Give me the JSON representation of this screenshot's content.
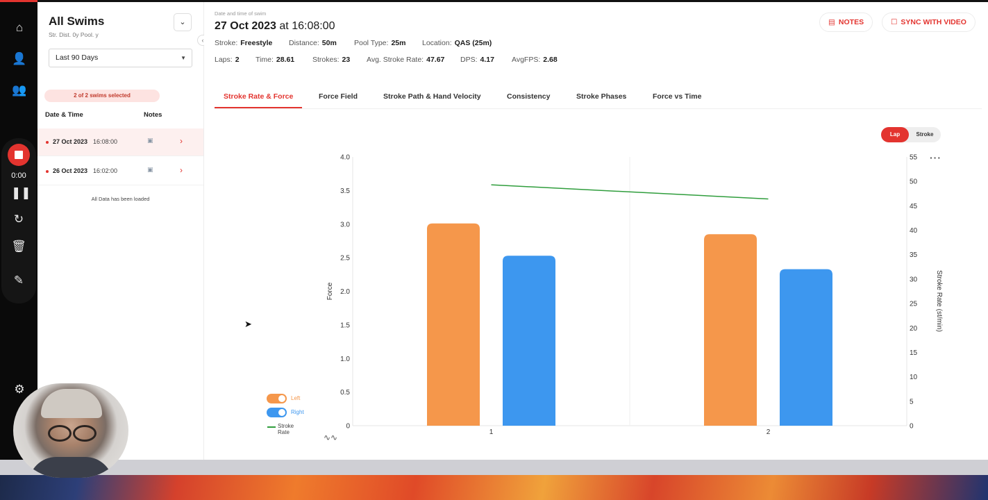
{
  "rail": {
    "icons": [
      "home-icon",
      "user-settings-icon",
      "team-icon",
      "gear-icon"
    ],
    "recorder": {
      "time": "0:00"
    }
  },
  "sidebar": {
    "title": "All Swims",
    "subtitle": "Str.  Dist. 0y  Pool. y",
    "range": "Last  90 Days",
    "selected_badge": "2 of 2 swims selected",
    "col_date": "Date & Time",
    "col_notes": "Notes",
    "swims": [
      {
        "date": "27 Oct 2023",
        "time": "16:08:00"
      },
      {
        "date": "26 Oct 2023",
        "time": "16:02:00"
      }
    ],
    "loaded": "All Data has been loaded"
  },
  "main": {
    "caption": "Date and time of swim",
    "date": "27 Oct 2023",
    "at": "at 16:08:00",
    "notes_btn": "NOTES",
    "sync_btn": "SYNC WITH VIDEO",
    "stats_row1": [
      {
        "label": "Stroke:",
        "value": "Freestyle"
      },
      {
        "label": "Distance:",
        "value": "50m"
      },
      {
        "label": "Pool Type:",
        "value": "25m"
      },
      {
        "label": "Location:",
        "value": "QAS (25m)"
      }
    ],
    "stats_row2": [
      {
        "label": "Laps:",
        "value": "2"
      },
      {
        "label": "Time:",
        "value": "28.61"
      },
      {
        "label": "Strokes:",
        "value": "23"
      },
      {
        "label": "Avg. Stroke Rate:",
        "value": "47.67"
      },
      {
        "label": "DPS:",
        "value": "4.17"
      },
      {
        "label": "AvgFPS:",
        "value": "2.68"
      }
    ],
    "tabs": [
      "Stroke Rate & Force",
      "Force Field",
      "Stroke Path & Hand Velocity",
      "Consistency",
      "Stroke Phases",
      "Force vs Time"
    ],
    "toggle": {
      "on": "Lap",
      "off": "Stroke"
    },
    "legend": {
      "left": "Left",
      "right": "Right",
      "rate": "Stroke Rate"
    }
  },
  "chart_data": {
    "type": "bar",
    "categories": [
      "1",
      "2"
    ],
    "series": [
      {
        "name": "Left",
        "values": [
          3.01,
          2.85
        ],
        "color": "#f5974b"
      },
      {
        "name": "Right",
        "values": [
          2.53,
          2.33
        ],
        "color": "#3d97ef"
      },
      {
        "name": "Stroke Rate",
        "values": [
          49.3,
          46.4
        ],
        "color": "#2f9d3c",
        "axis": "right"
      }
    ],
    "ylabel": "Force",
    "y2label": "Stroke Rate (st/min)",
    "ylim": [
      0,
      4.0
    ],
    "y2lim": [
      0,
      55
    ],
    "yticks": [
      "0",
      "0.5",
      "1.0",
      "1.5",
      "2.0",
      "2.5",
      "3.0",
      "3.5",
      "4.0"
    ],
    "y2ticks": [
      "0",
      "5",
      "10",
      "15",
      "20",
      "25",
      "30",
      "35",
      "40",
      "45",
      "50",
      "55"
    ],
    "legend": "bottom-left"
  }
}
